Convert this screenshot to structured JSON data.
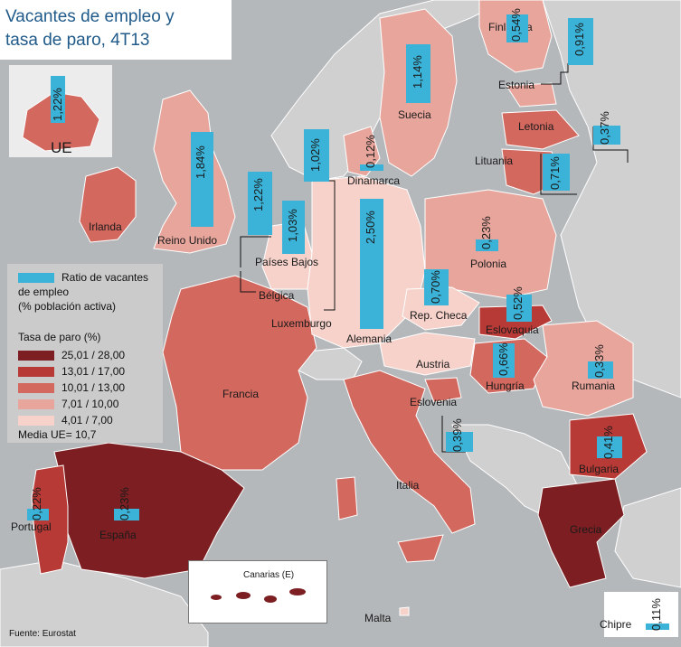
{
  "title": {
    "line1": "Vacantes de empleo y",
    "line2": "tasa de paro, 4T13"
  },
  "legend": {
    "bar_label_line1": "Ratio de vacantes",
    "bar_label_line2": "de empleo",
    "bar_label_line3": "(% población activa)",
    "bar_color": "#3bb3d8",
    "unemployment_title": "Tasa de paro (%)",
    "classes": [
      {
        "label": "25,01 / 28,00",
        "color": "#7d1f22"
      },
      {
        "label": "13,01 / 17,00",
        "color": "#b83a36"
      },
      {
        "label": "10,01 / 13,00",
        "color": "#d3685f"
      },
      {
        "label": "7,01 / 10,00",
        "color": "#e8a59c"
      },
      {
        "label": "4,01 / 7,00",
        "color": "#f6d2cb"
      }
    ],
    "eu_average": "Media UE= 10,7"
  },
  "inset_label": "UE",
  "canarias_label": "Canarias (E)",
  "source": "Fuente: Eurostat",
  "countries": [
    {
      "name": "Irlanda",
      "vacancy": ""
    },
    {
      "name": "Reino Unido",
      "vacancy": "1,84%"
    },
    {
      "name": "Países Bajos",
      "vacancy": "1,22%"
    },
    {
      "name": "Bélgica",
      "vacancy": "1,03%"
    },
    {
      "name": "Luxemburgo",
      "vacancy": "1,02%"
    },
    {
      "name": "Alemania",
      "vacancy": "2,50%"
    },
    {
      "name": "Dinamarca",
      "vacancy": "0,12%"
    },
    {
      "name": "Suecia",
      "vacancy": "1,14%"
    },
    {
      "name": "Finlandia",
      "vacancy": "0,54%"
    },
    {
      "name": "Estonia",
      "vacancy": "0,91%"
    },
    {
      "name": "Letonia",
      "vacancy": "0,37%"
    },
    {
      "name": "Lituania",
      "vacancy": "0,71%"
    },
    {
      "name": "Polonia",
      "vacancy": "0,23%"
    },
    {
      "name": "Rep. Checa",
      "vacancy": "0,70%"
    },
    {
      "name": "Eslovaquia",
      "vacancy": "0,52%"
    },
    {
      "name": "Hungría",
      "vacancy": "0,66%"
    },
    {
      "name": "Austria",
      "vacancy": ""
    },
    {
      "name": "Eslovenia",
      "vacancy": "0,39%"
    },
    {
      "name": "Rumania",
      "vacancy": "0,33%"
    },
    {
      "name": "Bulgaria",
      "vacancy": "0,41%"
    },
    {
      "name": "Francia",
      "vacancy": ""
    },
    {
      "name": "Italia",
      "vacancy": ""
    },
    {
      "name": "Portugal",
      "vacancy": "0,22%"
    },
    {
      "name": "España",
      "vacancy": "0,23%"
    },
    {
      "name": "Grecia",
      "vacancy": ""
    },
    {
      "name": "Malta",
      "vacancy": ""
    },
    {
      "name": "Chipre",
      "vacancy": "0,11%"
    }
  ],
  "eu_vacancy": "1,22%"
}
